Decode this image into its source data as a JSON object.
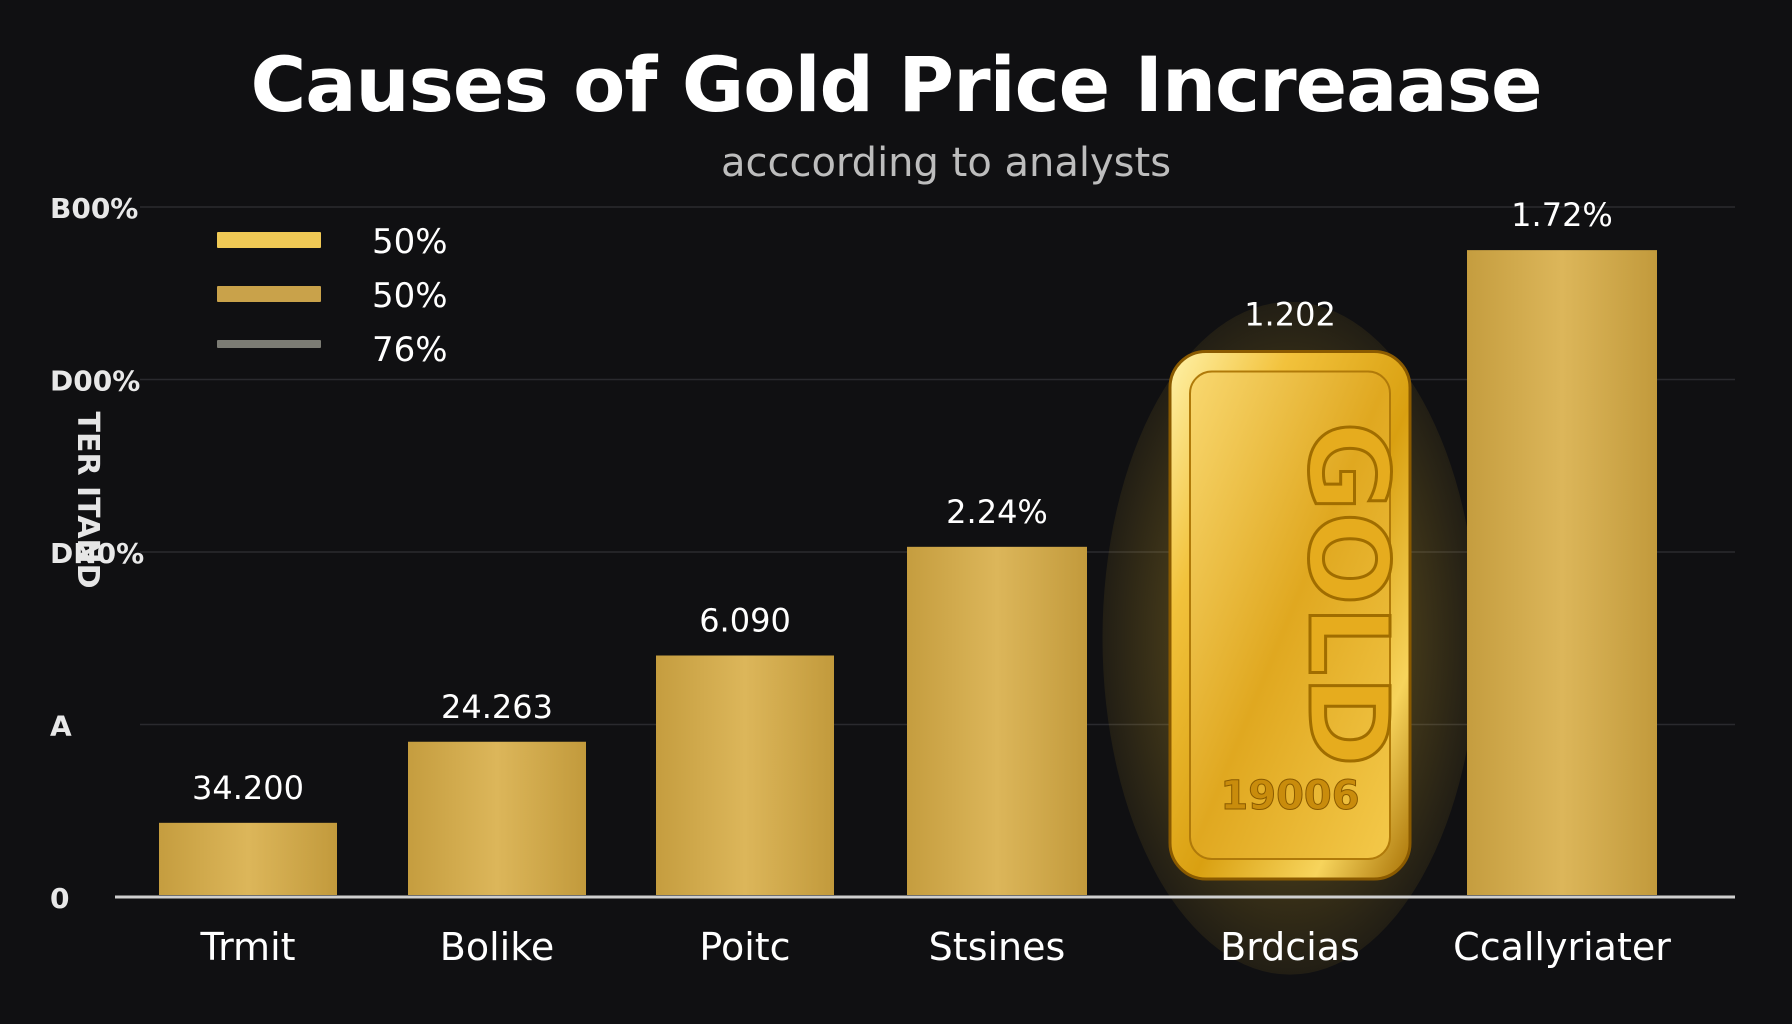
{
  "chart_data": {
    "type": "bar",
    "title": "Causes of Gold Price Increaase",
    "subtitle": "acccording to analysts",
    "ylabel": "TER ITAND",
    "ytick_labels": [
      "0",
      "A",
      "DN0%",
      "D00%",
      "B00%"
    ],
    "ylim": [
      0,
      4
    ],
    "grid": true,
    "categories": [
      "Trmit",
      "Bolike",
      "Poitc",
      "Stsines",
      "Brdcias",
      "Ccallyriater"
    ],
    "values": [
      0.43,
      0.9,
      1.4,
      2.03,
      3.0,
      3.75
    ],
    "data_labels": [
      "34.200",
      "24.263",
      "6.090",
      "2.24%",
      "1.202",
      "1.72%"
    ],
    "highlight_bar": {
      "category": "Brdcias",
      "bar_text": "GOLD",
      "bar_number": "19006"
    },
    "legend": {
      "placement": "top-left",
      "items": [
        {
          "label": "50%",
          "color": "#f0c955"
        },
        {
          "label": "50%",
          "color": "#c9a24a"
        },
        {
          "label": "76%",
          "color": "#7c7c74"
        }
      ]
    },
    "colors": {
      "bar": "#d4ac4e",
      "background": "#101012",
      "grid": "#2a2a2e",
      "axis": "#cfcfcf"
    }
  }
}
